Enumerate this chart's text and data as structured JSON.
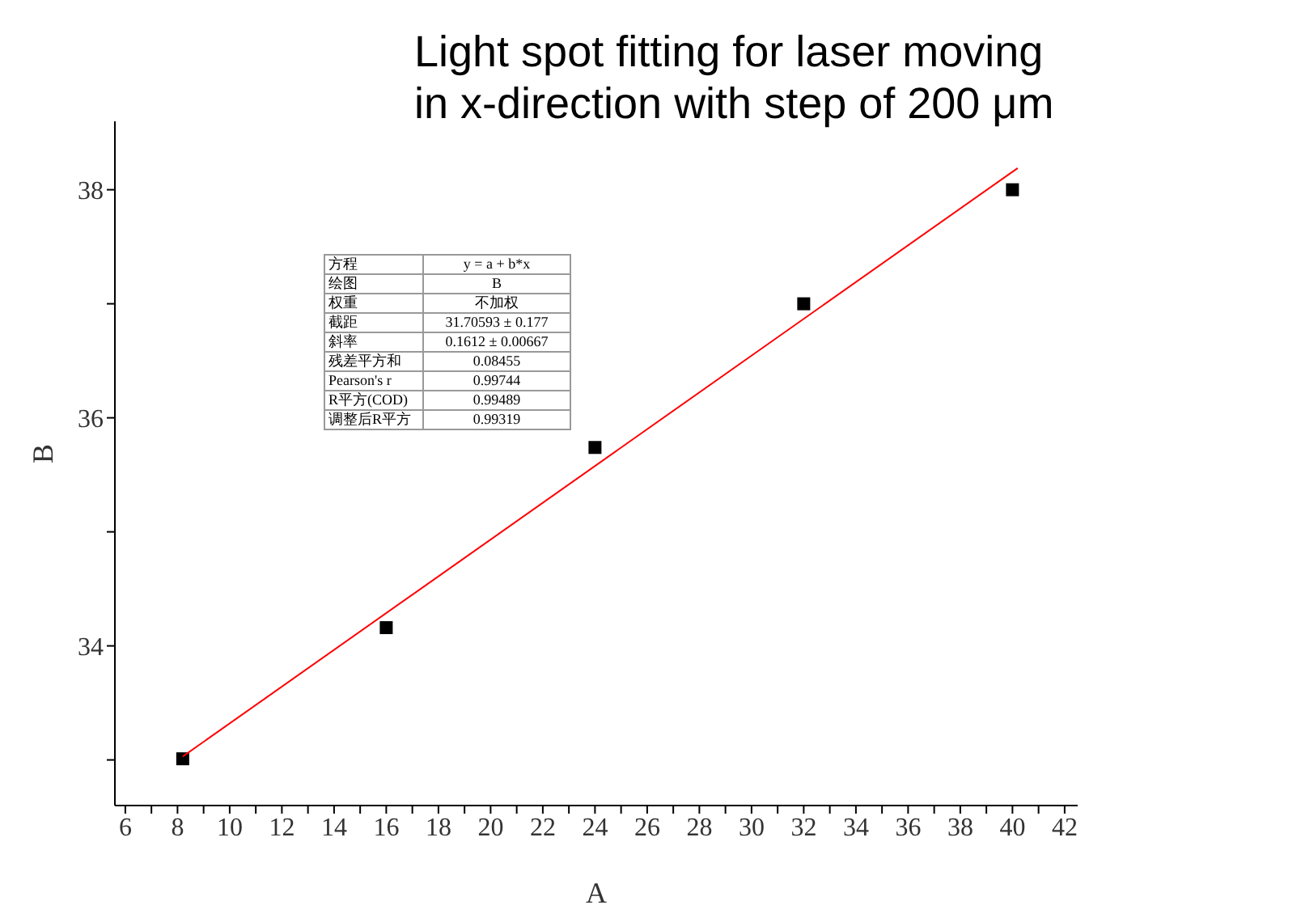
{
  "chart_data": {
    "type": "scatter",
    "title": "Light spot fitting for laser moving\nin x-direction with step of 200 μm",
    "xlabel": "A",
    "ylabel": "B",
    "xlim": [
      5.6,
      42.5
    ],
    "ylim": [
      32.6,
      38.6
    ],
    "xticks": [
      6,
      {
        "value": 7,
        "label": null
      },
      8,
      {
        "value": 9,
        "label": null
      },
      10,
      {
        "value": 11,
        "label": null
      },
      12,
      {
        "value": 13,
        "label": null
      },
      14,
      {
        "value": 15,
        "label": null
      },
      16,
      {
        "value": 17,
        "label": null
      },
      18,
      {
        "value": 19,
        "label": null
      },
      20,
      {
        "value": 21,
        "label": null
      },
      22,
      {
        "value": 23,
        "label": null
      },
      24,
      {
        "value": 25,
        "label": null
      },
      26,
      {
        "value": 27,
        "label": null
      },
      28,
      {
        "value": 29,
        "label": null
      },
      30,
      {
        "value": 31,
        "label": null
      },
      32,
      {
        "value": 33,
        "label": null
      },
      34,
      {
        "value": 35,
        "label": null
      },
      36,
      {
        "value": 37,
        "label": null
      },
      38,
      {
        "value": 39,
        "label": null
      },
      40,
      {
        "value": 41,
        "label": null
      },
      42
    ],
    "yticks": [
      {
        "value": 33,
        "label": null
      },
      34,
      {
        "value": 35,
        "label": null
      },
      36,
      {
        "value": 37,
        "label": null
      },
      38
    ],
    "series": [
      {
        "marker": "square",
        "color": "#000000",
        "x": [
          8.2,
          16,
          24,
          32,
          40
        ],
        "values": [
          33.01,
          34.16,
          35.74,
          37.0,
          38.0
        ]
      },
      {
        "type": "line",
        "color": "#ff0000",
        "x": [
          8.2,
          40.2
        ],
        "values": [
          33.03,
          38.19
        ]
      }
    ],
    "annotations": [
      "方程",
      "y = a + b*x",
      "绘图",
      "B",
      "权重",
      "不加权",
      "截距",
      "31.70593 ± 0.177",
      "斜率",
      "0.1612 ± 0.00667",
      "残差平方和",
      "0.08455",
      "Pearson's r",
      "0.99744",
      "R平方(COD)",
      "0.99489",
      "调整后R平方",
      "0.99319"
    ]
  }
}
